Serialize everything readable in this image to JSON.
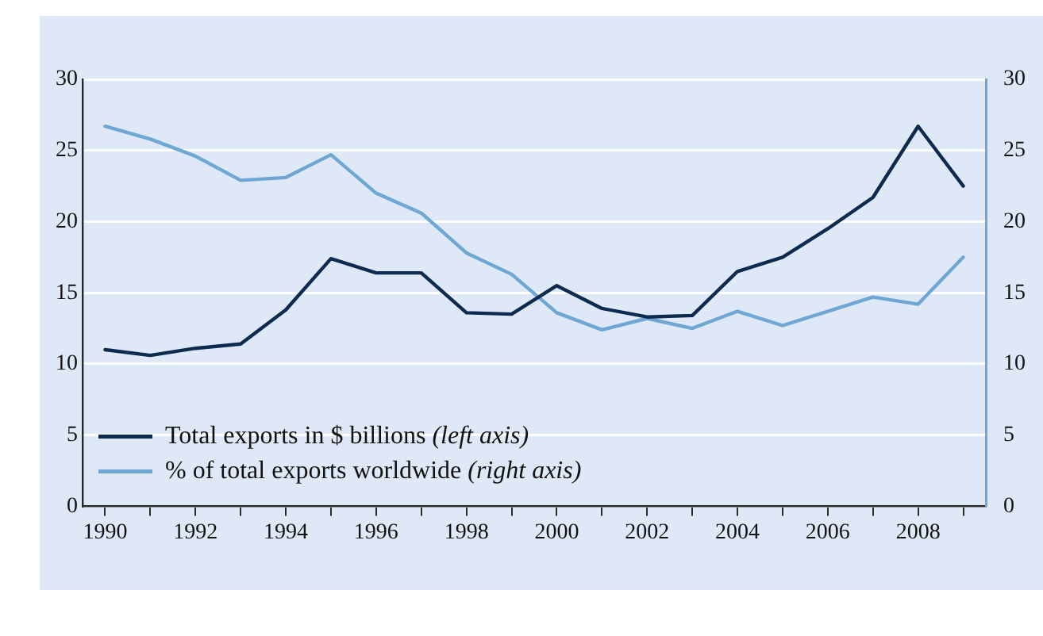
{
  "chart_data": {
    "type": "line",
    "x": [
      1990,
      1991,
      1992,
      1993,
      1994,
      1995,
      1996,
      1997,
      1998,
      1999,
      2000,
      2001,
      2002,
      2003,
      2004,
      2005,
      2006,
      2007,
      2008,
      2009
    ],
    "series": [
      {
        "name": "Total exports in $ billions (left axis)",
        "color": "#0d2b4f",
        "values": [
          11.0,
          10.6,
          11.1,
          11.4,
          13.8,
          17.4,
          16.4,
          16.4,
          13.6,
          13.5,
          15.5,
          13.9,
          13.3,
          13.4,
          16.5,
          17.5,
          19.5,
          21.7,
          26.7,
          22.5
        ]
      },
      {
        "name": "% of total exports worldwide (right axis)",
        "color": "#6ea7d3",
        "axis": "y2",
        "values": [
          26.7,
          25.8,
          24.6,
          22.9,
          23.1,
          24.7,
          22.0,
          20.6,
          17.8,
          16.3,
          13.6,
          12.4,
          13.2,
          12.5,
          13.7,
          12.7,
          13.7,
          14.7,
          14.2,
          17.5
        ]
      }
    ],
    "xlim": [
      1989.5,
      2009.5
    ],
    "xticks": [
      1990,
      {
        "value": 1991,
        "label": null
      },
      1992,
      {
        "value": 1993,
        "label": null
      },
      1994,
      {
        "value": 1995,
        "label": null
      },
      1996,
      {
        "value": 1997,
        "label": null
      },
      1998,
      {
        "value": 1999,
        "label": null
      },
      2000,
      {
        "value": 2001,
        "label": null
      },
      2002,
      {
        "value": 2003,
        "label": null
      },
      2004,
      {
        "value": 2005,
        "label": null
      },
      2006,
      {
        "value": 2007,
        "label": null
      },
      2008,
      {
        "value": 2009,
        "label": null
      }
    ],
    "ylim": [
      0,
      30
    ],
    "yticks": [
      0,
      5,
      10,
      15,
      20,
      25,
      30
    ],
    "y2lim": [
      0,
      30
    ],
    "y2ticks": [
      0,
      5,
      10,
      15,
      20,
      25,
      30
    ],
    "grid": "y",
    "legend": "bottom left",
    "marker": "none",
    "line_style": "solid"
  }
}
